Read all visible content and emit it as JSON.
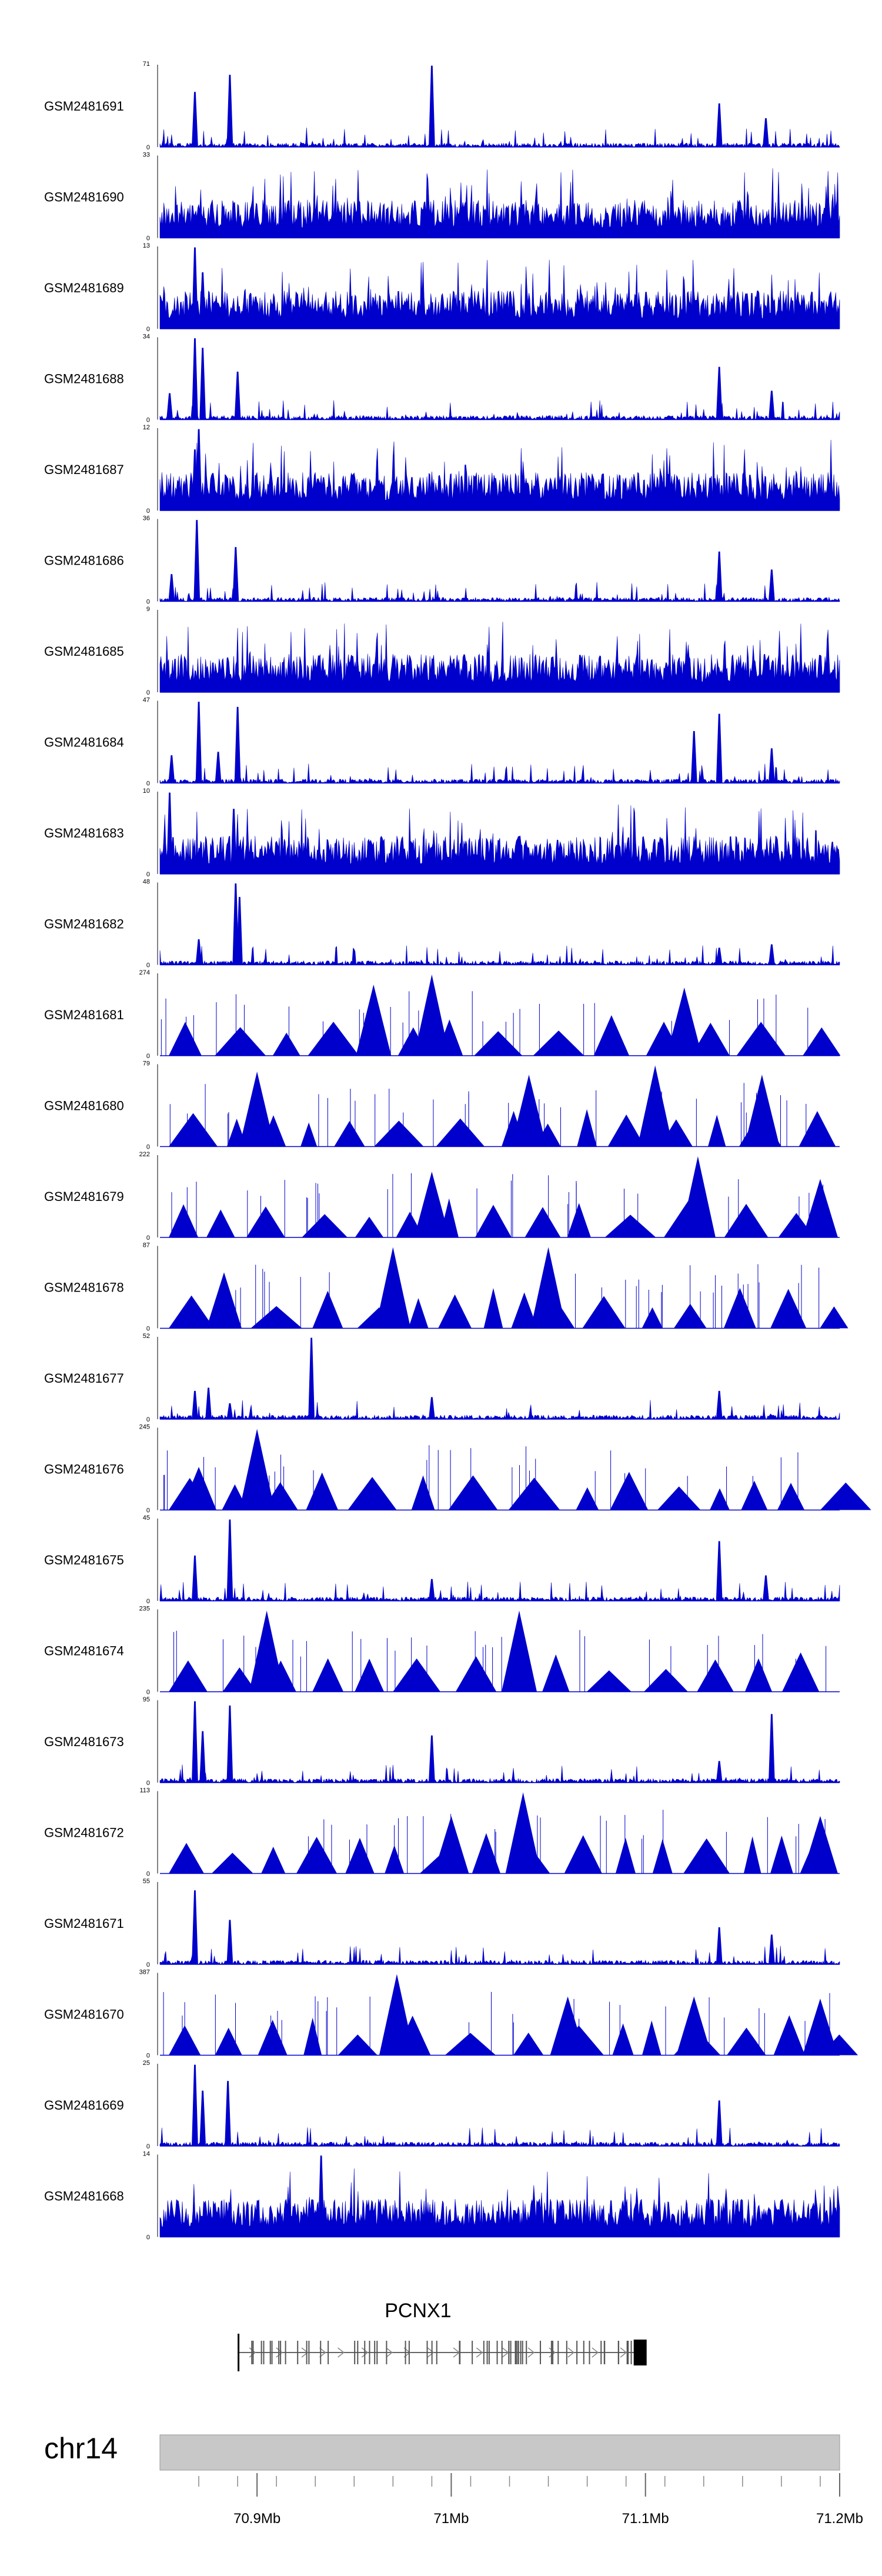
{
  "chart_data": {
    "type": "area",
    "title": "",
    "region": {
      "chrom": "chr14",
      "start_mb": 70.85,
      "end_mb": 71.2
    },
    "xlabel": "",
    "ylabel": "",
    "track_color": "#0000cc",
    "tracks": [
      {
        "name": "GSM2481691",
        "ymax": 71,
        "ymin": 0,
        "style": "sparse",
        "seed": 11,
        "peaks": [
          [
            70.868,
            48
          ],
          [
            70.886,
            63
          ],
          [
            70.99,
            71
          ],
          [
            71.138,
            38
          ],
          [
            71.162,
            25
          ]
        ]
      },
      {
        "name": "GSM2481690",
        "ymax": 33,
        "ymin": 0,
        "style": "dense",
        "seed": 12,
        "peaks": []
      },
      {
        "name": "GSM2481689",
        "ymax": 13,
        "ymin": 0,
        "style": "dense",
        "seed": 13,
        "peaks": [
          [
            70.868,
            13
          ],
          [
            70.872,
            9
          ]
        ]
      },
      {
        "name": "GSM2481688",
        "ymax": 34,
        "ymin": 0,
        "style": "sparse",
        "seed": 14,
        "peaks": [
          [
            70.855,
            11
          ],
          [
            70.868,
            34
          ],
          [
            70.872,
            30
          ],
          [
            70.89,
            20
          ],
          [
            71.138,
            22
          ],
          [
            71.165,
            12
          ]
        ]
      },
      {
        "name": "GSM2481687",
        "ymax": 12,
        "ymin": 0,
        "style": "dense",
        "seed": 15,
        "peaks": [
          [
            70.87,
            12
          ],
          [
            70.868,
            9
          ]
        ]
      },
      {
        "name": "GSM2481686",
        "ymax": 36,
        "ymin": 0,
        "style": "sparse",
        "seed": 16,
        "peaks": [
          [
            70.856,
            12
          ],
          [
            70.869,
            36
          ],
          [
            70.889,
            24
          ],
          [
            71.138,
            22
          ],
          [
            71.165,
            14
          ]
        ]
      },
      {
        "name": "GSM2481685",
        "ymax": 9,
        "ymin": 0,
        "style": "dense",
        "seed": 17,
        "peaks": []
      },
      {
        "name": "GSM2481684",
        "ymax": 47,
        "ymin": 0,
        "style": "sparse",
        "seed": 18,
        "peaks": [
          [
            70.856,
            16
          ],
          [
            70.87,
            47
          ],
          [
            70.88,
            18
          ],
          [
            70.89,
            44
          ],
          [
            71.125,
            30
          ],
          [
            71.138,
            40
          ],
          [
            71.165,
            20
          ]
        ]
      },
      {
        "name": "GSM2481683",
        "ymax": 10,
        "ymin": 0,
        "style": "dense",
        "seed": 19,
        "peaks": [
          [
            70.855,
            10
          ],
          [
            70.888,
            8
          ]
        ]
      },
      {
        "name": "GSM2481682",
        "ymax": 48,
        "ymin": 0,
        "style": "sparse",
        "seed": 20,
        "peaks": [
          [
            70.87,
            15
          ],
          [
            70.889,
            48
          ],
          [
            70.891,
            40
          ],
          [
            71.138,
            10
          ],
          [
            71.165,
            12
          ]
        ]
      },
      {
        "name": "GSM2481681",
        "ymax": 274,
        "ymin": 0,
        "style": "triangles",
        "seed": 21,
        "peaks": [
          [
            70.99,
            274
          ],
          [
            70.96,
            240
          ],
          [
            71.12,
            230
          ]
        ]
      },
      {
        "name": "GSM2481680",
        "ymax": 79,
        "ymin": 0,
        "style": "triangles",
        "seed": 22,
        "peaks": [
          [
            70.9,
            73
          ],
          [
            71.04,
            70
          ],
          [
            71.105,
            79
          ],
          [
            71.16,
            70
          ]
        ]
      },
      {
        "name": "GSM2481679",
        "ymax": 222,
        "ymin": 0,
        "style": "triangles",
        "seed": 23,
        "peaks": [
          [
            71.127,
            222
          ],
          [
            71.19,
            160
          ],
          [
            70.99,
            180
          ]
        ]
      },
      {
        "name": "GSM2481678",
        "ymax": 87,
        "ymin": 0,
        "style": "triangles",
        "seed": 24,
        "peaks": [
          [
            70.883,
            60
          ],
          [
            70.97,
            87
          ],
          [
            71.05,
            87
          ]
        ]
      },
      {
        "name": "GSM2481677",
        "ymax": 52,
        "ymin": 0,
        "style": "sparse",
        "seed": 25,
        "peaks": [
          [
            70.868,
            18
          ],
          [
            70.875,
            20
          ],
          [
            70.928,
            52
          ],
          [
            70.886,
            10
          ],
          [
            70.99,
            14
          ],
          [
            71.138,
            18
          ]
        ]
      },
      {
        "name": "GSM2481676",
        "ymax": 245,
        "ymin": 0,
        "style": "triangles",
        "seed": 26,
        "peaks": [
          [
            70.9,
            245
          ],
          [
            70.87,
            130
          ]
        ]
      },
      {
        "name": "GSM2481675",
        "ymax": 45,
        "ymin": 0,
        "style": "sparse",
        "seed": 27,
        "peaks": [
          [
            70.868,
            25
          ],
          [
            70.886,
            45
          ],
          [
            70.99,
            12
          ],
          [
            71.138,
            33
          ],
          [
            71.162,
            14
          ]
        ]
      },
      {
        "name": "GSM2481674",
        "ymax": 235,
        "ymin": 0,
        "style": "triangles",
        "seed": 28,
        "peaks": [
          [
            70.905,
            235
          ],
          [
            71.035,
            235
          ]
        ]
      },
      {
        "name": "GSM2481673",
        "ymax": 95,
        "ymin": 0,
        "style": "sparse",
        "seed": 29,
        "peaks": [
          [
            70.868,
            95
          ],
          [
            70.872,
            60
          ],
          [
            70.886,
            90
          ],
          [
            70.99,
            55
          ],
          [
            71.138,
            25
          ],
          [
            71.165,
            80
          ]
        ]
      },
      {
        "name": "GSM2481672",
        "ymax": 113,
        "ymin": 0,
        "style": "triangles",
        "seed": 30,
        "peaks": [
          [
            71.0,
            80
          ],
          [
            71.037,
            113
          ],
          [
            71.19,
            80
          ]
        ]
      },
      {
        "name": "GSM2481671",
        "ymax": 55,
        "ymin": 0,
        "style": "sparse",
        "seed": 31,
        "peaks": [
          [
            70.868,
            50
          ],
          [
            70.886,
            30
          ],
          [
            71.138,
            25
          ],
          [
            71.165,
            20
          ]
        ]
      },
      {
        "name": "GSM2481670",
        "ymax": 387,
        "ymin": 0,
        "style": "triangles",
        "seed": 32,
        "peaks": [
          [
            70.972,
            387
          ],
          [
            71.06,
            280
          ],
          [
            71.125,
            280
          ],
          [
            71.19,
            270
          ]
        ]
      },
      {
        "name": "GSM2481669",
        "ymax": 25,
        "ymin": 0,
        "style": "sparse",
        "seed": 33,
        "peaks": [
          [
            70.868,
            25
          ],
          [
            70.872,
            17
          ],
          [
            70.885,
            20
          ],
          [
            71.138,
            14
          ]
        ]
      },
      {
        "name": "GSM2481668",
        "ymax": 14,
        "ymin": 0,
        "style": "dense",
        "seed": 34,
        "peaks": [
          [
            70.933,
            14
          ]
        ]
      }
    ],
    "gene": {
      "name": "PCNX1",
      "start_mb": 70.89,
      "end_mb": 71.1,
      "strand": "+"
    },
    "axis": {
      "chrom_label": "chr14",
      "ticks": [
        {
          "value": 70.9,
          "label": "70.9Mb"
        },
        {
          "value": 71.0,
          "label": "71Mb"
        },
        {
          "value": 71.1,
          "label": "71.1Mb"
        },
        {
          "value": 71.2,
          "label": "71.2Mb"
        }
      ],
      "minor_tick_step_mb": 0.02
    }
  }
}
